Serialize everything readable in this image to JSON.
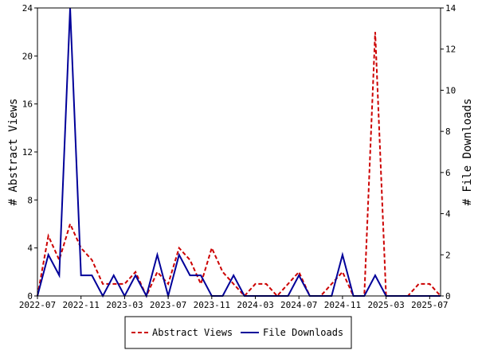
{
  "chart_data": {
    "type": "line",
    "x": [
      "2022-07",
      "2022-08",
      "2022-09",
      "2022-10",
      "2022-11",
      "2022-12",
      "2023-01",
      "2023-02",
      "2023-03",
      "2023-04",
      "2023-05",
      "2023-06",
      "2023-07",
      "2023-08",
      "2023-09",
      "2023-10",
      "2023-11",
      "2023-12",
      "2024-01",
      "2024-02",
      "2024-03",
      "2024-04",
      "2024-05",
      "2024-06",
      "2024-07",
      "2024-08",
      "2024-09",
      "2024-10",
      "2024-11",
      "2024-12",
      "2025-01",
      "2025-02",
      "2025-03",
      "2025-04",
      "2025-05",
      "2025-06",
      "2025-07",
      "2025-08"
    ],
    "x_ticks": [
      "2022-07",
      "2022-11",
      "2023-03",
      "2023-07",
      "2023-11",
      "2024-03",
      "2024-07",
      "2024-11",
      "2025-03",
      "2025-07"
    ],
    "series": [
      {
        "name": "Abstract Views",
        "axis": "left",
        "color": "#cc0000",
        "dash": true,
        "values": [
          0,
          5,
          3,
          6,
          4,
          3,
          1,
          1,
          1,
          2,
          0,
          2,
          1,
          4,
          3,
          1,
          4,
          2,
          1,
          0,
          1,
          1,
          0,
          1,
          2,
          0,
          0,
          1,
          2,
          0,
          0,
          22,
          0,
          0,
          0,
          1,
          1,
          0
        ]
      },
      {
        "name": "File Downloads",
        "axis": "right",
        "color": "#000099",
        "dash": false,
        "values": [
          0,
          2,
          1,
          14,
          1,
          1,
          0,
          1,
          0,
          1,
          0,
          2,
          0,
          2,
          1,
          1,
          0,
          0,
          1,
          0,
          0,
          0,
          0,
          0,
          1,
          0,
          0,
          0,
          2,
          0,
          0,
          1,
          0,
          0,
          0,
          0,
          0,
          0
        ]
      }
    ],
    "y_left": {
      "label": "# Abstract Views",
      "ylim": [
        0,
        24
      ],
      "ticks": [
        0,
        4,
        8,
        12,
        16,
        20,
        24
      ]
    },
    "y_right": {
      "label": "# File Downloads",
      "ylim": [
        0,
        14
      ],
      "ticks": [
        0,
        2,
        4,
        6,
        8,
        10,
        12,
        14
      ]
    },
    "legend_placement": "bottom-center",
    "grid": false
  }
}
